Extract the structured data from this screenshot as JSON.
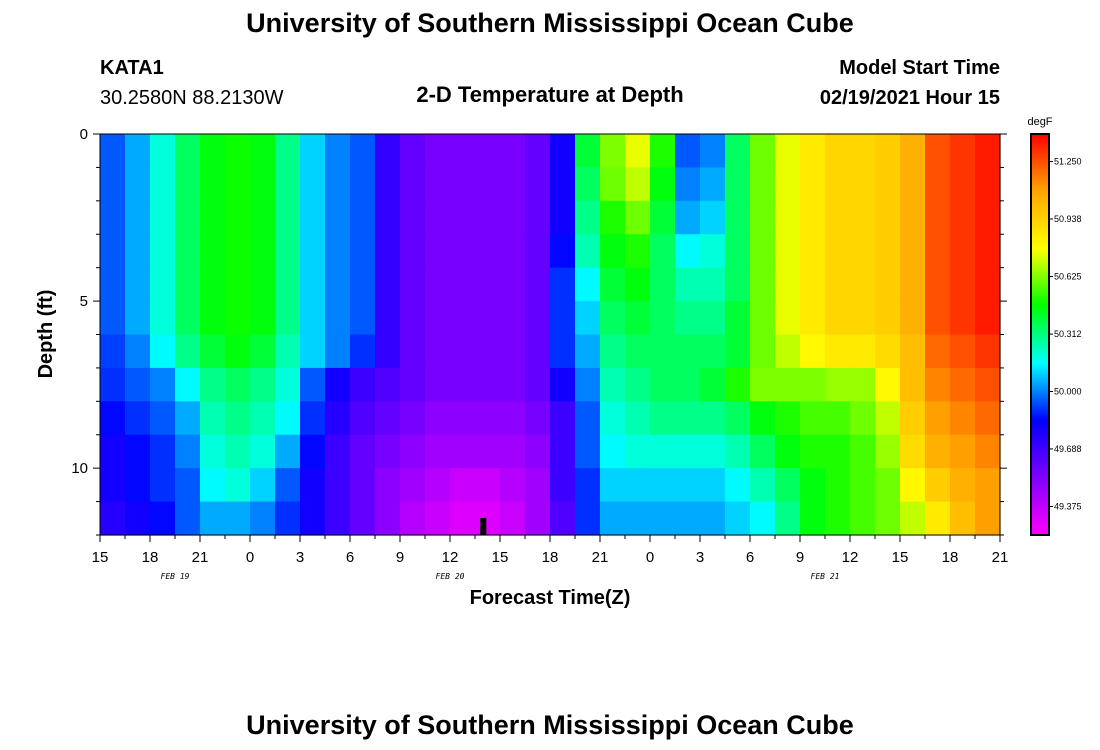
{
  "header": {
    "title_top": "University of Southern Mississippi Ocean Cube",
    "title_bottom": "University of Southern Mississippi Ocean Cube",
    "station_id": "KATA1",
    "station_coords": "30.2580N 88.2130W",
    "model_start_label": "Model Start Time",
    "model_start_value": "02/19/2021 Hour 15"
  },
  "chart_data": {
    "type": "heatmap",
    "title": "2-D Temperature at Depth",
    "xlabel": "Forecast Time(Z)",
    "ylabel": "Depth (ft)",
    "x_tick_labels": [
      "15",
      "18",
      "21",
      "0",
      "3",
      "6",
      "9",
      "12",
      "15",
      "18",
      "21",
      "0",
      "3",
      "6",
      "9",
      "12",
      "15",
      "18",
      "21"
    ],
    "x_hours_from_start": [
      0,
      54
    ],
    "date_labels": [
      {
        "text": "FEB 19",
        "hour": 4.5
      },
      {
        "text": "FEB 20",
        "hour": 21
      },
      {
        "text": "FEB 21",
        "hour": 43.5
      }
    ],
    "y_tick_labels": [
      "0",
      "5",
      "10"
    ],
    "y_tick_values": [
      0,
      5,
      10
    ],
    "ylim": [
      0,
      12
    ],
    "depth_levels_ft": [
      0.5,
      1.5,
      2.5,
      3.5,
      4.5,
      5.5,
      6.5,
      7.5,
      8.5,
      9.5,
      10.5,
      11.5
    ],
    "current_time_marker_hour": 23,
    "colorbar": {
      "unit": "degF",
      "tick_labels": [
        "51.250",
        "50.938",
        "50.625",
        "50.312",
        "50.000",
        "49.688",
        "49.375"
      ],
      "tick_values": [
        51.25,
        50.938,
        50.625,
        50.312,
        50.0,
        49.688,
        49.375
      ],
      "range": [
        49.22,
        51.4
      ],
      "colors": [
        "#ff00ff",
        "#8000ff",
        "#0000ff",
        "#00ffff",
        "#00ff00",
        "#ffff00",
        "#ffa500",
        "#ff0000"
      ]
    },
    "series": [
      {
        "name": "surface",
        "values": [
          49.95,
          50.05,
          50.2,
          50.35,
          50.45,
          50.48,
          50.45,
          50.3,
          50.1,
          50.0,
          49.95,
          49.72,
          49.6,
          49.55,
          49.55,
          49.55,
          49.55,
          49.6,
          49.8,
          50.4,
          50.62,
          50.75,
          50.5,
          49.95,
          50.0,
          50.35,
          50.6,
          50.75,
          50.85,
          50.92,
          50.92,
          50.95,
          51.05,
          51.25,
          51.3,
          51.35
        ]
      },
      {
        "name": "surface",
        "values": [
          49.95,
          50.05,
          50.2,
          50.35,
          50.45,
          50.48,
          50.45,
          50.3,
          50.1,
          50.0,
          49.95,
          49.72,
          49.6,
          49.55,
          49.55,
          49.55,
          49.55,
          49.6,
          49.8,
          50.35,
          50.6,
          50.7,
          50.45,
          50.0,
          50.05,
          50.35,
          50.6,
          50.75,
          50.85,
          50.92,
          50.92,
          50.95,
          51.05,
          51.25,
          51.3,
          51.35
        ]
      },
      {
        "name": "surface",
        "values": [
          49.95,
          50.05,
          50.2,
          50.35,
          50.45,
          50.48,
          50.45,
          50.3,
          50.1,
          50.0,
          49.95,
          49.72,
          49.6,
          49.55,
          49.55,
          49.55,
          49.55,
          49.6,
          49.8,
          50.3,
          50.5,
          50.6,
          50.4,
          50.05,
          50.1,
          50.35,
          50.6,
          50.75,
          50.85,
          50.92,
          50.92,
          50.95,
          51.05,
          51.25,
          51.3,
          51.35
        ]
      },
      {
        "name": "mid",
        "values": [
          49.95,
          50.05,
          50.2,
          50.35,
          50.45,
          50.48,
          50.45,
          50.3,
          50.1,
          50.0,
          49.95,
          49.72,
          49.6,
          49.55,
          49.55,
          49.55,
          49.55,
          49.6,
          49.85,
          50.25,
          50.45,
          50.5,
          50.35,
          50.15,
          50.2,
          50.35,
          50.6,
          50.75,
          50.85,
          50.92,
          50.92,
          50.95,
          51.05,
          51.25,
          51.3,
          51.35
        ]
      },
      {
        "name": "mid",
        "values": [
          49.95,
          50.05,
          50.2,
          50.35,
          50.45,
          50.48,
          50.45,
          50.3,
          50.1,
          50.0,
          49.95,
          49.72,
          49.6,
          49.55,
          49.55,
          49.55,
          49.55,
          49.6,
          49.9,
          50.15,
          50.4,
          50.45,
          50.35,
          50.25,
          50.25,
          50.35,
          50.6,
          50.75,
          50.85,
          50.92,
          50.92,
          50.95,
          51.05,
          51.25,
          51.3,
          51.35
        ]
      },
      {
        "name": "mid",
        "values": [
          49.95,
          50.05,
          50.2,
          50.35,
          50.45,
          50.48,
          50.45,
          50.3,
          50.1,
          50.0,
          49.95,
          49.72,
          49.6,
          49.55,
          49.55,
          49.55,
          49.55,
          49.6,
          49.9,
          50.1,
          50.35,
          50.4,
          50.35,
          50.3,
          50.3,
          50.4,
          50.6,
          50.75,
          50.85,
          50.92,
          50.92,
          50.95,
          51.05,
          51.25,
          51.3,
          51.35
        ]
      },
      {
        "name": "mid",
        "values": [
          49.92,
          50.0,
          50.15,
          50.3,
          50.4,
          50.45,
          50.4,
          50.25,
          50.1,
          50.0,
          49.9,
          49.72,
          49.6,
          49.55,
          49.55,
          49.55,
          49.55,
          49.6,
          49.9,
          50.05,
          50.3,
          50.35,
          50.35,
          50.35,
          50.35,
          50.4,
          50.6,
          50.7,
          50.8,
          50.85,
          50.85,
          50.9,
          51.0,
          51.2,
          51.25,
          51.3
        ]
      },
      {
        "name": "deep",
        "values": [
          49.9,
          49.95,
          50.0,
          50.15,
          50.3,
          50.35,
          50.3,
          50.2,
          49.95,
          49.8,
          49.7,
          49.65,
          49.6,
          49.55,
          49.55,
          49.55,
          49.55,
          49.6,
          49.8,
          50.0,
          50.25,
          50.3,
          50.35,
          50.35,
          50.4,
          50.5,
          50.62,
          50.62,
          50.62,
          50.65,
          50.65,
          50.8,
          51.0,
          51.15,
          51.2,
          51.25
        ]
      },
      {
        "name": "deep",
        "values": [
          49.85,
          49.9,
          49.95,
          50.05,
          50.25,
          50.3,
          50.25,
          50.15,
          49.9,
          49.75,
          49.65,
          49.6,
          49.55,
          49.5,
          49.5,
          49.5,
          49.5,
          49.55,
          49.7,
          49.95,
          50.2,
          50.25,
          50.3,
          50.3,
          50.3,
          50.35,
          50.45,
          50.5,
          50.55,
          50.55,
          50.6,
          50.7,
          50.95,
          51.1,
          51.15,
          51.2
        ]
      },
      {
        "name": "deep",
        "values": [
          49.8,
          49.85,
          49.9,
          50.0,
          50.2,
          50.25,
          50.2,
          50.05,
          49.85,
          49.7,
          49.6,
          49.55,
          49.5,
          49.45,
          49.45,
          49.45,
          49.45,
          49.5,
          49.7,
          49.95,
          50.15,
          50.2,
          50.2,
          50.2,
          50.2,
          50.25,
          50.35,
          50.45,
          50.5,
          50.5,
          50.55,
          50.65,
          50.9,
          51.05,
          51.1,
          51.15
        ]
      },
      {
        "name": "deep",
        "values": [
          49.8,
          49.85,
          49.9,
          49.95,
          50.15,
          50.2,
          50.1,
          49.95,
          49.8,
          49.7,
          49.6,
          49.5,
          49.45,
          49.4,
          49.35,
          49.35,
          49.4,
          49.45,
          49.7,
          49.9,
          50.1,
          50.1,
          50.1,
          50.1,
          50.1,
          50.15,
          50.25,
          50.35,
          50.45,
          50.5,
          50.55,
          50.6,
          50.8,
          50.95,
          51.05,
          51.1
        ]
      },
      {
        "name": "bottom",
        "values": [
          49.75,
          49.8,
          49.85,
          49.95,
          50.05,
          50.05,
          50.0,
          49.9,
          49.8,
          49.7,
          49.6,
          49.5,
          49.4,
          49.35,
          49.3,
          49.3,
          49.35,
          49.45,
          49.65,
          49.9,
          50.05,
          50.05,
          50.05,
          50.05,
          50.05,
          50.1,
          50.15,
          50.3,
          50.45,
          50.5,
          50.55,
          50.6,
          50.7,
          50.85,
          51.0,
          51.1
        ]
      }
    ]
  }
}
